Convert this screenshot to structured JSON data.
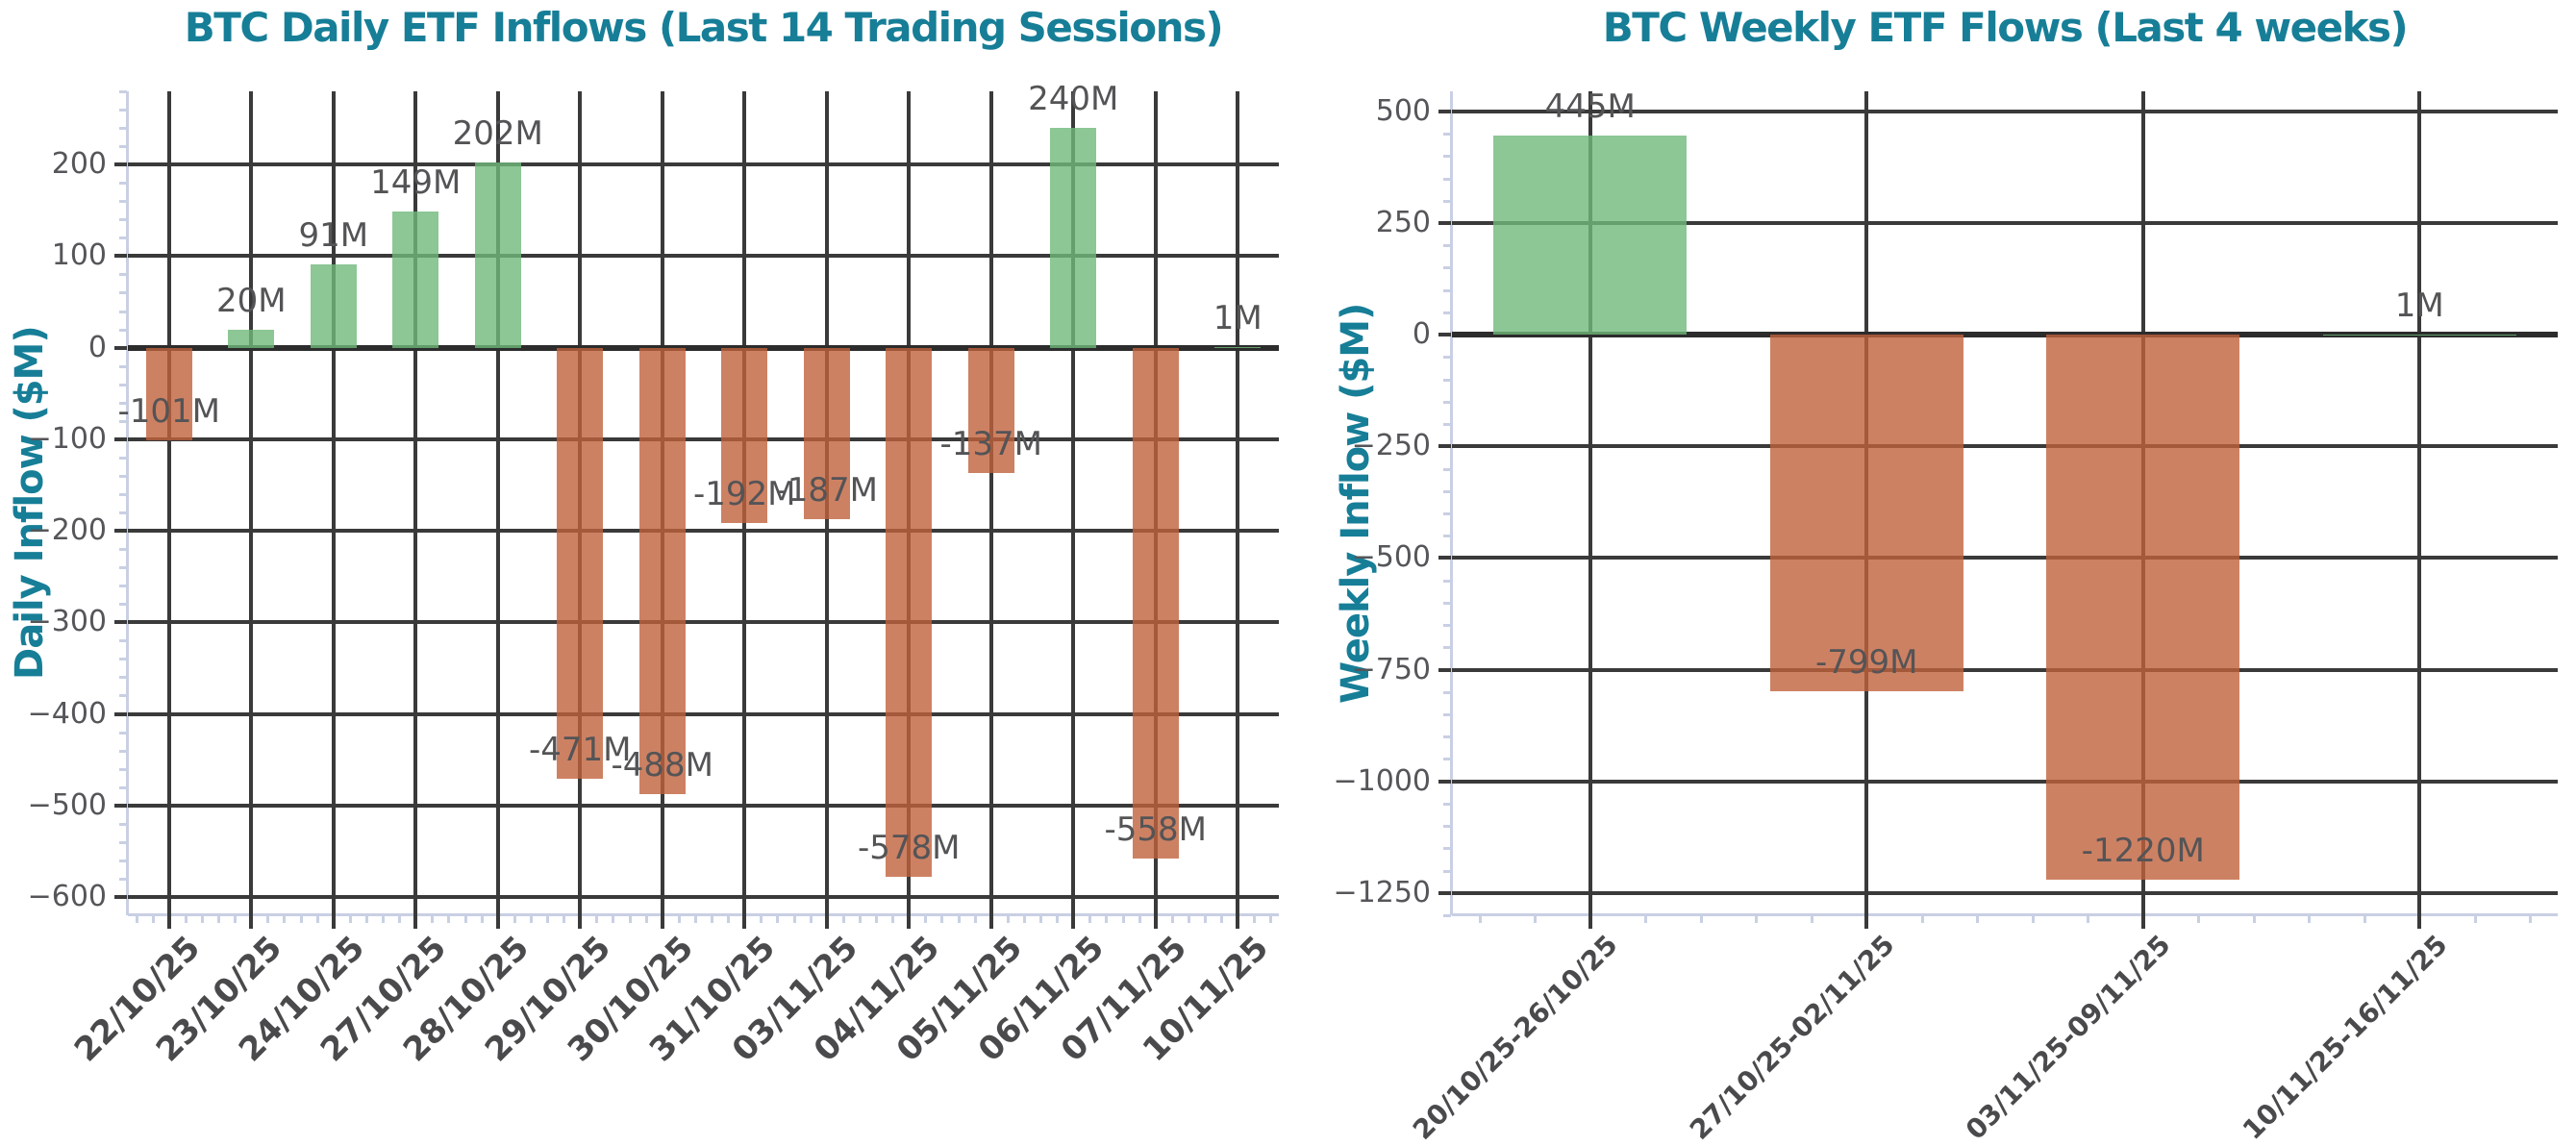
{
  "colors": {
    "background": "#ffffff",
    "title": "#177e97",
    "axis_label": "#177e97",
    "gridline": "#3a3a3a",
    "zero_line": "#2c2c2c",
    "positive_bar": "#6fb97a",
    "negative_bar": "#c0613c",
    "bar_opacity": 0.8,
    "tick_label": "#555659",
    "value_label": "#545456",
    "date_label": "#4a4a4c",
    "spine": "#c9d0e4"
  },
  "chart_data": [
    {
      "type": "bar",
      "title": "BTC Daily ETF Inflows (Last 14 Trading Sessions)",
      "xlabel": "",
      "ylabel": "Daily Inflow ($M)",
      "categories": [
        "22/10/25",
        "23/10/25",
        "24/10/25",
        "27/10/25",
        "28/10/25",
        "29/10/25",
        "30/10/25",
        "31/10/25",
        "03/11/25",
        "04/11/25",
        "05/11/25",
        "06/11/25",
        "07/11/25",
        "10/11/25"
      ],
      "values": [
        -101,
        20,
        91,
        149,
        202,
        -471,
        -488,
        -192,
        -187,
        -578,
        -137,
        240,
        -558,
        1
      ],
      "bar_labels": [
        "-101M",
        "20M",
        "91M",
        "149M",
        "202M",
        "-471M",
        "-488M",
        "-192M",
        "-187M",
        "-578M",
        "-137M",
        "240M",
        "-558M",
        "1M"
      ],
      "yticks": [
        200,
        100,
        0,
        -100,
        -200,
        -300,
        -400,
        -500,
        -600
      ],
      "ytick_labels": [
        "200",
        "100",
        "0",
        "−100",
        "−200",
        "−300",
        "−400",
        "−500",
        "−600"
      ],
      "ylim": [
        -620,
        280
      ],
      "grid": true
    },
    {
      "type": "bar",
      "title": "BTC Weekly ETF Flows (Last 4 weeks)",
      "xlabel": "",
      "ylabel": "Weekly Inflow ($M)",
      "categories": [
        "20/10/25-26/10/25",
        "27/10/25-02/11/25",
        "03/11/25-09/11/25",
        "10/11/25-16/11/25"
      ],
      "values": [
        445,
        -799,
        -1220,
        1
      ],
      "bar_labels": [
        "445M",
        "-799M",
        "-1220M",
        "1M"
      ],
      "yticks": [
        500,
        250,
        0,
        -250,
        -500,
        -750,
        -1000,
        -1250
      ],
      "ytick_labels": [
        "500",
        "250",
        "0",
        "−250",
        "−500",
        "−750",
        "−1000",
        "−1250"
      ],
      "ylim": [
        -1300,
        545
      ],
      "grid": true
    }
  ]
}
